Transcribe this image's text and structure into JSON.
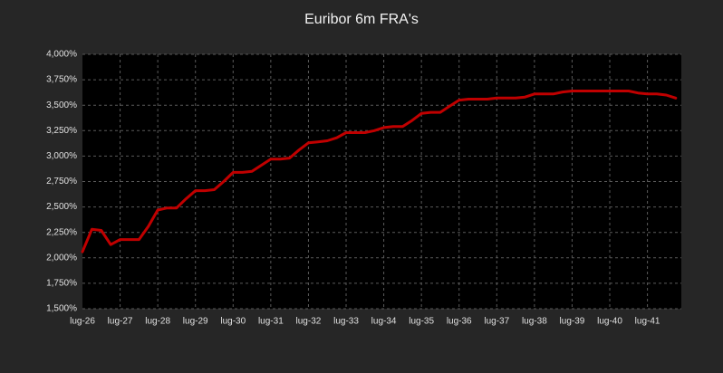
{
  "chart_data": {
    "type": "line",
    "title": "Euribor 6m FRA's",
    "categories": [
      "lug-26",
      null,
      null,
      null,
      "lug-27",
      null,
      null,
      null,
      "lug-28",
      null,
      null,
      null,
      "lug-29",
      null,
      null,
      null,
      "lug-30",
      null,
      null,
      null,
      "lug-31",
      null,
      null,
      null,
      "lug-32",
      null,
      null,
      null,
      "lug-33",
      null,
      null,
      null,
      "lug-34",
      null,
      null,
      null,
      "lug-35",
      null,
      null,
      null,
      "lug-36",
      null,
      null,
      null,
      "lug-37",
      null,
      null,
      null,
      "lug-38",
      null,
      null,
      null,
      "lug-39",
      null,
      null,
      null,
      "lug-40",
      null,
      null,
      null,
      "lug-41",
      null,
      null,
      null
    ],
    "values": [
      2.06,
      2.28,
      2.27,
      2.13,
      2.18,
      2.18,
      2.18,
      2.31,
      2.47,
      2.49,
      2.49,
      2.58,
      2.66,
      2.66,
      2.67,
      2.75,
      2.84,
      2.84,
      2.85,
      2.91,
      2.97,
      2.97,
      2.98,
      3.06,
      3.13,
      3.14,
      3.15,
      3.18,
      3.23,
      3.23,
      3.23,
      3.25,
      3.28,
      3.29,
      3.29,
      3.35,
      3.42,
      3.43,
      3.43,
      3.49,
      3.55,
      3.56,
      3.56,
      3.56,
      3.57,
      3.57,
      3.57,
      3.58,
      3.61,
      3.61,
      3.61,
      3.63,
      3.64,
      3.64,
      3.64,
      3.64,
      3.64,
      3.64,
      3.64,
      3.62,
      3.61,
      3.61,
      3.6,
      3.57
    ],
    "color": "#c00000",
    "ylim": [
      1.5,
      4.0
    ],
    "yticks": [
      {
        "value": 1.5,
        "label": "1,500%"
      },
      {
        "value": 1.75,
        "label": "1,750%"
      },
      {
        "value": 2.0,
        "label": "2,000%"
      },
      {
        "value": 2.25,
        "label": "2,250%"
      },
      {
        "value": 2.5,
        "label": "2,500%"
      },
      {
        "value": 2.75,
        "label": "2,750%"
      },
      {
        "value": 3.0,
        "label": "3,000%"
      },
      {
        "value": 3.25,
        "label": "3,250%"
      },
      {
        "value": 3.5,
        "label": "3,500%"
      },
      {
        "value": 3.75,
        "label": "3,750%"
      },
      {
        "value": 4.0,
        "label": "4,000%"
      }
    ],
    "grid": true
  }
}
